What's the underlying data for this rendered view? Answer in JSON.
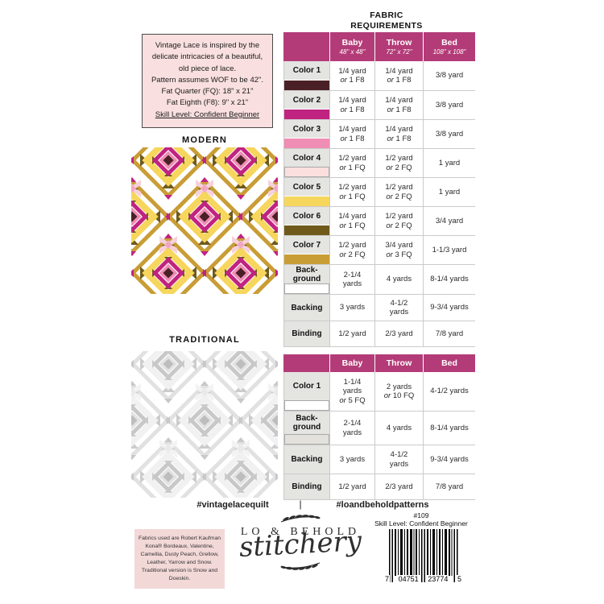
{
  "info_box": {
    "description": "Vintage Lace is inspired by the delicate intricacies of a beautiful, old piece of lace.",
    "wof_line": "Pattern assumes WOF to be 42\".",
    "fq_line": "Fat Quarter (FQ): 18\" x 21\"",
    "f8_line": "Fat Eighth (F8): 9\" x 21\"",
    "skill_line": "Skill Level: Confident Beginner"
  },
  "modern_label": "MODERN",
  "traditional_label": "TRADITIONAL",
  "fabric_requirements_title": "FABRIC REQUIREMENTS",
  "accent_color": "#b33c78",
  "tables": [
    {
      "name": "modern-requirements",
      "columns": [
        {
          "label": "Baby",
          "size": "48\" x 48\""
        },
        {
          "label": "Throw",
          "size": "72\" x 72\""
        },
        {
          "label": "Bed",
          "size": "108\" x 108\""
        }
      ],
      "rows": [
        {
          "label": "Color 1",
          "swatch": "#4a2026",
          "cells": [
            "1/4 yard|or 1 F8",
            "1/4 yard|or 1 F8",
            "3/8 yard"
          ]
        },
        {
          "label": "Color 2",
          "swatch": "#c12380",
          "cells": [
            "1/4 yard|or 1 F8",
            "1/4 yard|or 1 F8",
            "3/8 yard"
          ]
        },
        {
          "label": "Color 3",
          "swatch": "#ef8db4",
          "cells": [
            "1/4 yard|or 1 F8",
            "1/4 yard|or 1 F8",
            "3/8 yard"
          ]
        },
        {
          "label": "Color 4",
          "swatch": "#fbdfdf",
          "swatch_border": true,
          "cells": [
            "1/2 yard|or 1 FQ",
            "1/2 yard|or 2 FQ",
            "1 yard"
          ]
        },
        {
          "label": "Color 5",
          "swatch": "#f6d65c",
          "cells": [
            "1/2 yard|or 1 FQ",
            "1/2 yard|or 2 FQ",
            "1 yard"
          ]
        },
        {
          "label": "Color 6",
          "swatch": "#6f5a1c",
          "cells": [
            "1/4 yard|or 1 FQ",
            "1/2 yard|or 2 FQ",
            "3/4 yard"
          ]
        },
        {
          "label": "Color 7",
          "swatch": "#c99d35",
          "cells": [
            "1/2 yard|or 2 FQ",
            "3/4 yard|or 3 FQ",
            "1-1/3 yard"
          ]
        },
        {
          "label": "Back-\nground",
          "swatch": "#ffffff",
          "swatch_border": true,
          "cells": [
            "2-1/4|yards",
            "4 yards",
            "8-1/4 yards"
          ]
        },
        {
          "label": "Backing",
          "cells": [
            "3 yards",
            "4-1/2|yards",
            "9-3/4 yards"
          ]
        },
        {
          "label": "Binding",
          "cells": [
            "1/2 yard",
            "2/3 yard",
            "7/8 yard"
          ]
        }
      ]
    },
    {
      "name": "traditional-requirements",
      "columns": [
        {
          "label": "Baby"
        },
        {
          "label": "Throw"
        },
        {
          "label": "Bed"
        }
      ],
      "rows": [
        {
          "label": "Color 1",
          "swatch": "#ffffff",
          "swatch_border": true,
          "cells": [
            "1-1/4|yards|or 5 FQ",
            "2 yards|or 10 FQ",
            "4-1/2 yards"
          ]
        },
        {
          "label": "Back-\nground",
          "swatch": "#e3e1db",
          "swatch_border": true,
          "cells": [
            "2-1/4|yards",
            "4 yards",
            "8-1/4 yards"
          ]
        },
        {
          "label": "Backing",
          "cells": [
            "3 yards",
            "4-1/2|yards",
            "9-3/4 yards"
          ]
        },
        {
          "label": "Binding",
          "cells": [
            "1/2 yard",
            "2/3 yard",
            "7/8 yard"
          ]
        }
      ]
    }
  ],
  "hashtags": {
    "left": "#vintagelacequilt",
    "divider": "|",
    "right": "#loandbeholdpatterns"
  },
  "logo": {
    "name_line": "LO & BEHOLD",
    "script_line": "stitchery"
  },
  "product": {
    "number": "#109",
    "skill": "Skill Level: Confident Beginner",
    "barcode_digits": [
      "7",
      "04751",
      "23774",
      "5"
    ]
  },
  "fabrics_note": "Fabrics used are Robert Kaufman Kona® Bordeaux, Valentine, Camellia, Dusty Peach, Grellow, Leather, Yarrow and Snow. Traditional version is Snow and Doeskin."
}
